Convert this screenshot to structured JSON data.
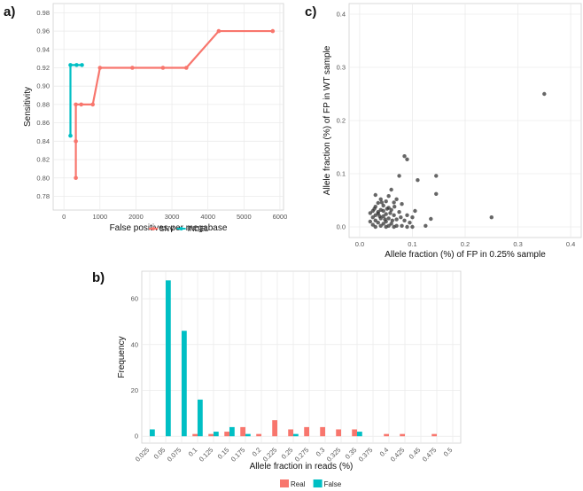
{
  "colors": {
    "snv": "#F8766D",
    "indel": "#00BFC4",
    "real": "#F8766D",
    "false": "#00BFC4",
    "points": "#333333",
    "panel_bg": "#ffffff",
    "grid": "#ebebeb",
    "frame": "#cfcfcf"
  },
  "chart_data": [
    {
      "id": "a",
      "panel_label": "a)",
      "type": "line",
      "xlabel": "False positives per megabase",
      "ylabel": "Sensitivity",
      "xlim": [
        -300,
        6100
      ],
      "ylim": [
        0.765,
        0.99
      ],
      "xticks": [
        0,
        1000,
        2000,
        3000,
        4000,
        5000,
        6000
      ],
      "yticks": [
        0.78,
        0.8,
        0.82,
        0.84,
        0.86,
        0.88,
        0.9,
        0.92,
        0.94,
        0.96,
        0.98
      ],
      "ytick_labels": [
        "0.78",
        "0.80",
        "0.82",
        "0.84",
        "0.86",
        "0.88",
        "0.90",
        "0.92",
        "0.94",
        "0.96",
        "0.98"
      ],
      "series": [
        {
          "name": "SNV",
          "color_key": "snv",
          "x": [
            330,
            330,
            330,
            480,
            800,
            1000,
            1900,
            2750,
            3400,
            4300,
            5800
          ],
          "y": [
            0.8,
            0.84,
            0.88,
            0.88,
            0.88,
            0.92,
            0.92,
            0.92,
            0.92,
            0.96,
            0.96
          ]
        },
        {
          "name": "INDEL",
          "color_key": "indel",
          "x": [
            180,
            180,
            350,
            500
          ],
          "y": [
            0.846,
            0.923,
            0.923,
            0.923
          ]
        }
      ],
      "legend": [
        "SNV",
        "INDEL"
      ],
      "legend_position": "bottom"
    },
    {
      "id": "c",
      "panel_label": "c)",
      "type": "scatter",
      "xlabel": "Allele fraction (%) of FP in 0.25% sample",
      "ylabel": "Allele fraction (%) of FP in WT sample",
      "xlim": [
        -0.02,
        0.42
      ],
      "ylim": [
        -0.02,
        0.42
      ],
      "xticks": [
        0,
        0.1,
        0.2,
        0.3,
        0.4
      ],
      "xtick_labels": [
        "0.0",
        "0.1",
        "0.2",
        "0.3",
        "0.4"
      ],
      "yticks": [
        0,
        0.1,
        0.2,
        0.3,
        0.4
      ],
      "ytick_labels": [
        "0.0",
        "0.1",
        "0.2",
        "0.3",
        "0.4"
      ],
      "points": [
        [
          0.35,
          0.25
        ],
        [
          0.25,
          0.018
        ],
        [
          0.085,
          0.133
        ],
        [
          0.09,
          0.127
        ],
        [
          0.145,
          0.096
        ],
        [
          0.075,
          0.096
        ],
        [
          0.11,
          0.088
        ],
        [
          0.145,
          0.062
        ],
        [
          0.105,
          0.03
        ],
        [
          0.135,
          0.015
        ],
        [
          0.125,
          0.002
        ],
        [
          0.06,
          0.07
        ],
        [
          0.03,
          0.06
        ],
        [
          0.055,
          0.058
        ],
        [
          0.04,
          0.052
        ],
        [
          0.07,
          0.052
        ],
        [
          0.05,
          0.048
        ],
        [
          0.035,
          0.045
        ],
        [
          0.065,
          0.046
        ],
        [
          0.045,
          0.04
        ],
        [
          0.08,
          0.043
        ],
        [
          0.03,
          0.038
        ],
        [
          0.055,
          0.036
        ],
        [
          0.04,
          0.032
        ],
        [
          0.025,
          0.03
        ],
        [
          0.06,
          0.032
        ],
        [
          0.075,
          0.028
        ],
        [
          0.035,
          0.025
        ],
        [
          0.05,
          0.024
        ],
        [
          0.03,
          0.022
        ],
        [
          0.045,
          0.02
        ],
        [
          0.065,
          0.022
        ],
        [
          0.025,
          0.018
        ],
        [
          0.04,
          0.016
        ],
        [
          0.055,
          0.016
        ],
        [
          0.07,
          0.014
        ],
        [
          0.03,
          0.012
        ],
        [
          0.05,
          0.01
        ],
        [
          0.085,
          0.012
        ],
        [
          0.035,
          0.008
        ],
        [
          0.045,
          0.006
        ],
        [
          0.06,
          0.006
        ],
        [
          0.025,
          0.004
        ],
        [
          0.04,
          0.002
        ],
        [
          0.055,
          0.002
        ],
        [
          0.07,
          0.002
        ],
        [
          0.08,
          0.002
        ],
        [
          0.03,
          0.0
        ],
        [
          0.05,
          0.0
        ],
        [
          0.065,
          0.0
        ],
        [
          0.09,
          0.0
        ],
        [
          0.1,
          0.0
        ],
        [
          0.035,
          0.028
        ],
        [
          0.045,
          0.03
        ],
        [
          0.058,
          0.026
        ],
        [
          0.028,
          0.034
        ],
        [
          0.038,
          0.02
        ],
        [
          0.048,
          0.014
        ],
        [
          0.062,
          0.012
        ],
        [
          0.078,
          0.018
        ],
        [
          0.09,
          0.022
        ],
        [
          0.095,
          0.008
        ],
        [
          0.02,
          0.026
        ],
        [
          0.02,
          0.01
        ],
        [
          0.1,
          0.018
        ],
        [
          0.042,
          0.046
        ],
        [
          0.052,
          0.034
        ],
        [
          0.066,
          0.038
        ]
      ]
    },
    {
      "id": "b",
      "panel_label": "b)",
      "type": "bar",
      "xlabel": "Allele fraction in reads (%)",
      "ylabel": "Frequency",
      "categories": [
        "0.025",
        "0.05",
        "0.075",
        "0.1",
        "0.125",
        "0.15",
        "0.175",
        "0.2",
        "0.225",
        "0.25",
        "0.275",
        "0.3",
        "0.325",
        "0.35",
        "0.375",
        "0.4",
        "0.425",
        "0.45",
        "0.475",
        "0.5"
      ],
      "ylim": [
        -3,
        72
      ],
      "yticks": [
        0,
        20,
        40,
        60
      ],
      "series": [
        {
          "name": "Real",
          "color_key": "real",
          "values": [
            0,
            0,
            0,
            1,
            1,
            2,
            4,
            1,
            7,
            3,
            4,
            4,
            3,
            3,
            0,
            1,
            1,
            0,
            1,
            0
          ]
        },
        {
          "name": "False",
          "color_key": "false",
          "values": [
            3,
            68,
            46,
            16,
            2,
            4,
            1,
            0,
            0,
            1,
            0,
            0,
            0,
            2,
            0,
            0,
            0,
            0,
            0,
            0
          ]
        }
      ],
      "legend": [
        "Real",
        "False"
      ],
      "legend_position": "bottom"
    }
  ]
}
